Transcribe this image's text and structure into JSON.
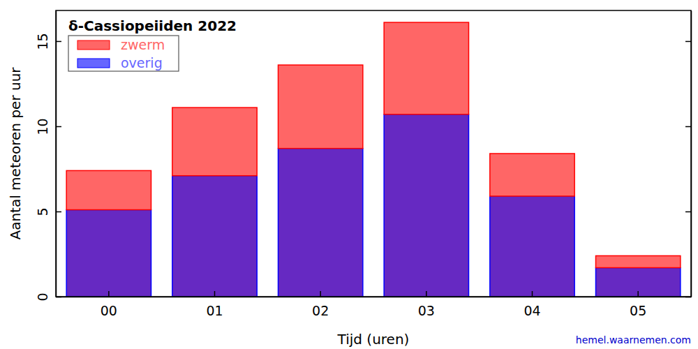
{
  "chart_data": {
    "type": "bar",
    "stacked": true,
    "title": "δ-Cassiopeiiden 2022",
    "x_label": "Tijd (uren)",
    "y_label": "Aantal meteoren per uur",
    "categories": [
      "00",
      "01",
      "02",
      "03",
      "04",
      "05"
    ],
    "series": [
      {
        "name": "zwerm",
        "color": "#ff0000",
        "values": [
          2.3,
          4.0,
          4.9,
          5.4,
          2.5,
          0.7
        ]
      },
      {
        "name": "overig",
        "color": "#0000ff",
        "values": [
          5.1,
          7.1,
          8.7,
          10.7,
          5.9,
          1.7
        ]
      }
    ],
    "ylim": [
      0,
      16.8
    ],
    "yticks": [
      0,
      5,
      10,
      15
    ],
    "legend": "upper left",
    "grid": false,
    "annotations": [
      "hemel.waarnemen.com"
    ]
  }
}
